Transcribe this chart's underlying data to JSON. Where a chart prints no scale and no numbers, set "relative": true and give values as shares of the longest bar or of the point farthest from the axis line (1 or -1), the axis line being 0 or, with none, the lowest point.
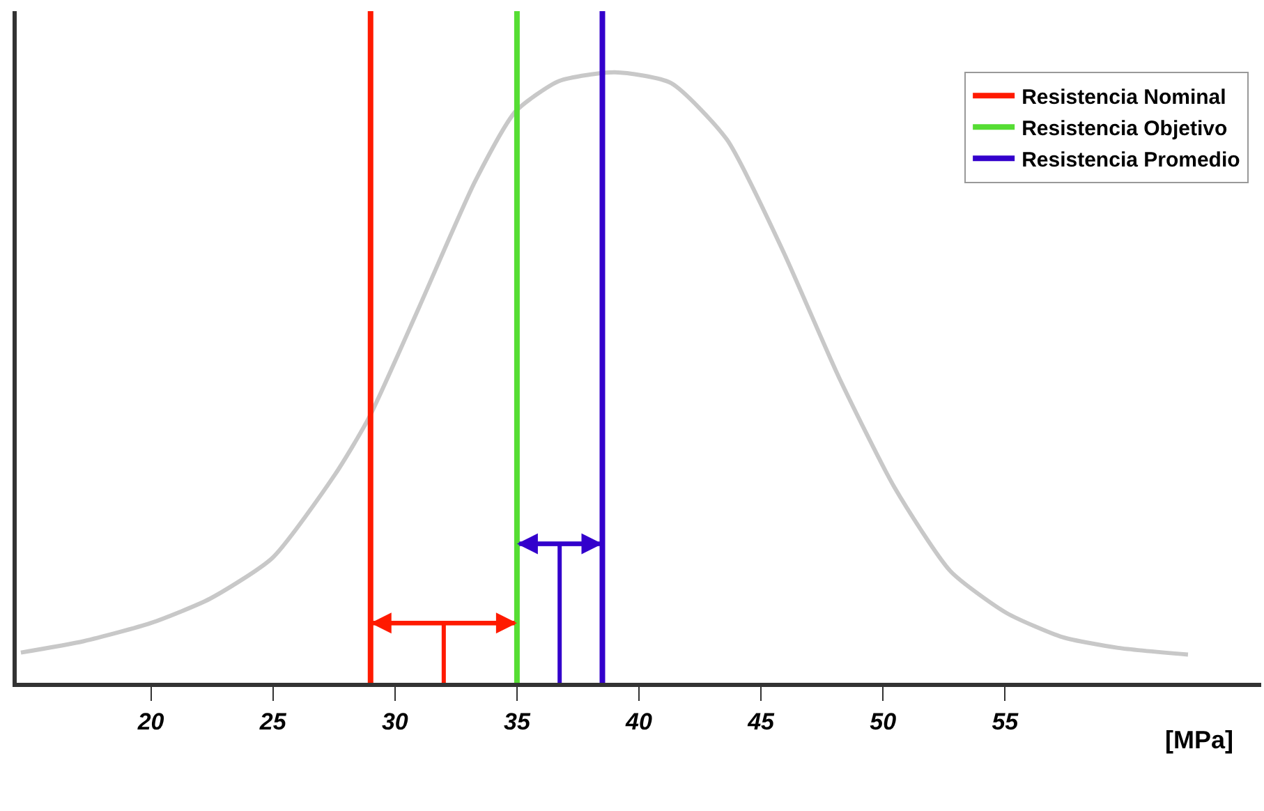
{
  "chart_data": {
    "type": "line",
    "relative": true,
    "xlabel": "[MPa]",
    "x": [
      14.67,
      17.25,
      20,
      22.41,
      24.98,
      27.56,
      28.94,
      31.0,
      33.29,
      34.95,
      36.73,
      39.02,
      41.31,
      43.6,
      45.89,
      48.18,
      50.47,
      52.77,
      55.06,
      57.35,
      59.64,
      62.5
    ],
    "series": [
      {
        "color": "#c8c8c8",
        "values": [
          0.045,
          0.062,
          0.089,
          0.125,
          0.186,
          0.311,
          0.395,
          0.56,
          0.747,
          0.851,
          0.896,
          0.909,
          0.893,
          0.809,
          0.644,
          0.456,
          0.291,
          0.166,
          0.104,
          0.068,
          0.052,
          0.042
        ]
      },
      {
        "color": "#ff1a00",
        "x": [
          29,
          35,
          32,
          32
        ],
        "values": [
          0.089,
          0.089,
          0.089,
          0
        ]
      },
      {
        "color": "#3300cc",
        "x": [
          35,
          38.5,
          36.75,
          36.75
        ],
        "values": [
          0.207,
          0.207,
          0.207,
          0
        ]
      },
      {
        "name": "Resistencia Nominal",
        "color": "#ff1a00",
        "x": [
          29,
          29
        ],
        "values": [
          0,
          1
        ]
      },
      {
        "name": "Resistencia Objetivo",
        "color": "#55dd33",
        "x": [
          35,
          35
        ],
        "values": [
          0,
          1
        ]
      },
      {
        "name": "Resistencia Promedio",
        "color": "#3300cc",
        "x": [
          38.5,
          38.5
        ],
        "values": [
          0,
          1
        ]
      }
    ],
    "xlim": [
      14.5,
      65.5
    ],
    "xticks": [
      20,
      25,
      30,
      35,
      40,
      45,
      50,
      55
    ],
    "legend": "top right"
  }
}
